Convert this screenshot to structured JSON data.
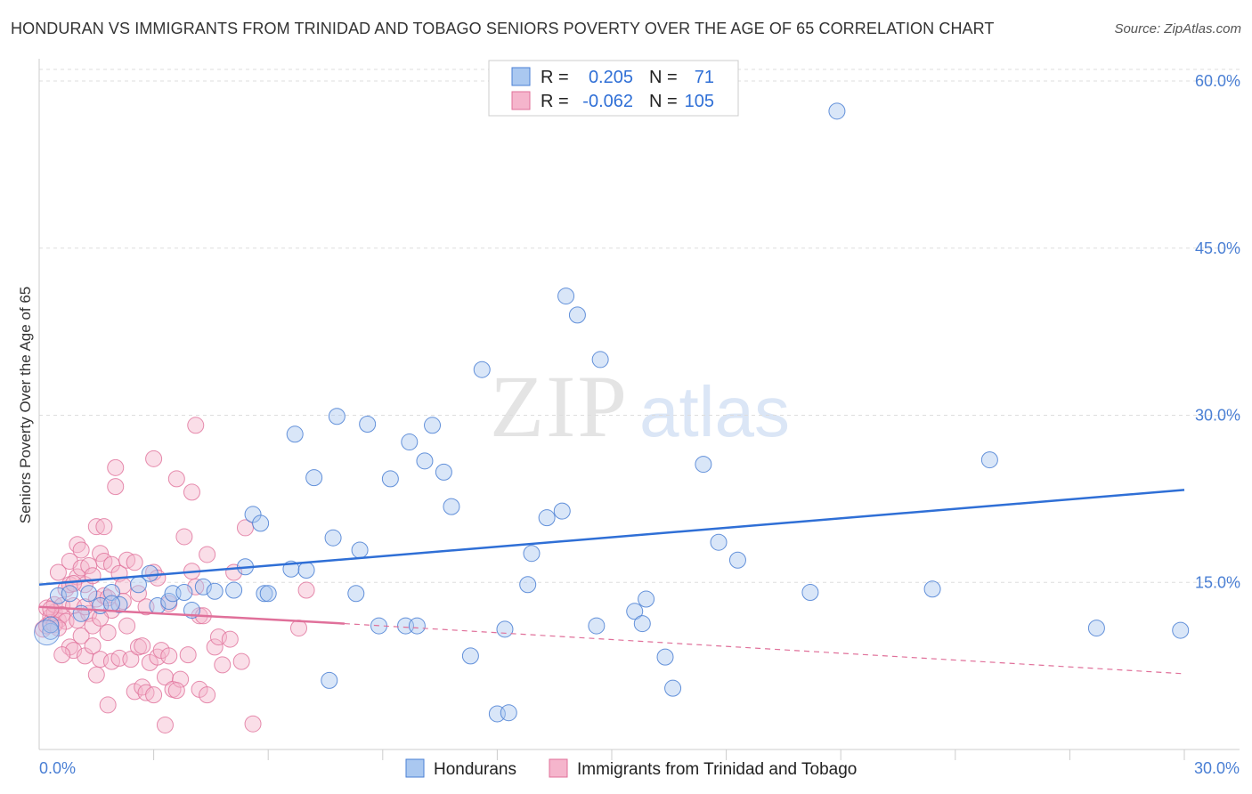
{
  "title": "HONDURAN VS IMMIGRANTS FROM TRINIDAD AND TOBAGO SENIORS POVERTY OVER THE AGE OF 65 CORRELATION CHART",
  "source": "Source: ZipAtlas.com",
  "watermark": {
    "zip": "ZIP",
    "atlas": "atlas"
  },
  "colors": {
    "blue": "#4a7fd4",
    "blue_fill": "#aac8f0",
    "pink": "#e0709a",
    "pink_fill": "#f5b5cc",
    "grid": "#dddddd"
  },
  "legend": {
    "r_label": "R =",
    "n_label": "N =",
    "rows": [
      {
        "r": "0.205",
        "n": "71"
      },
      {
        "r": "-0.062",
        "n": "105"
      }
    ]
  },
  "chart_data": {
    "type": "scatter",
    "title": "HONDURAN VS IMMIGRANTS FROM TRINIDAD AND TOBAGO SENIORS POVERTY OVER THE AGE OF 65 CORRELATION CHART",
    "ylabel": "Seniors Poverty Over the Age of 65",
    "xlim": [
      0,
      30
    ],
    "ylim": [
      0,
      62
    ],
    "x_tick_labels": [
      "0.0%",
      "30.0%"
    ],
    "y_ticks": [
      15,
      30,
      45,
      60
    ],
    "y_tick_labels": [
      "15.0%",
      "30.0%",
      "45.0%",
      "60.0%"
    ],
    "grid": true,
    "series": [
      {
        "name": "Hondurans",
        "trend": {
          "x": [
            0,
            30
          ],
          "y": [
            14.8,
            23.3
          ],
          "style": "solid"
        },
        "points": [
          [
            0.3,
            10.6
          ],
          [
            0.3,
            11.2
          ],
          [
            0.5,
            13.8
          ],
          [
            0.8,
            14.0
          ],
          [
            1.1,
            12.2
          ],
          [
            1.3,
            14.0
          ],
          [
            1.6,
            12.9
          ],
          [
            1.9,
            14.1
          ],
          [
            2.1,
            13.0
          ],
          [
            2.6,
            14.8
          ],
          [
            2.9,
            15.8
          ],
          [
            3.1,
            12.9
          ],
          [
            3.4,
            13.3
          ],
          [
            3.5,
            14.0
          ],
          [
            3.8,
            14.1
          ],
          [
            4.0,
            12.5
          ],
          [
            4.3,
            14.6
          ],
          [
            4.6,
            14.2
          ],
          [
            5.1,
            14.3
          ],
          [
            5.4,
            16.4
          ],
          [
            5.6,
            21.1
          ],
          [
            5.8,
            20.3
          ],
          [
            5.9,
            14.0
          ],
          [
            6.0,
            14.0
          ],
          [
            6.6,
            16.2
          ],
          [
            6.7,
            28.3
          ],
          [
            7.0,
            16.1
          ],
          [
            7.2,
            24.4
          ],
          [
            7.6,
            6.2
          ],
          [
            7.7,
            19.0
          ],
          [
            7.8,
            29.9
          ],
          [
            8.3,
            14.0
          ],
          [
            8.4,
            17.9
          ],
          [
            8.6,
            29.2
          ],
          [
            8.9,
            11.1
          ],
          [
            9.2,
            24.3
          ],
          [
            9.6,
            11.1
          ],
          [
            9.7,
            27.6
          ],
          [
            9.9,
            11.1
          ],
          [
            10.1,
            25.9
          ],
          [
            10.3,
            29.1
          ],
          [
            10.6,
            24.9
          ],
          [
            10.8,
            21.8
          ],
          [
            11.3,
            8.4
          ],
          [
            11.6,
            34.1
          ],
          [
            12.0,
            3.2
          ],
          [
            12.2,
            10.8
          ],
          [
            12.3,
            3.3
          ],
          [
            12.8,
            14.8
          ],
          [
            12.9,
            17.6
          ],
          [
            13.3,
            20.8
          ],
          [
            13.7,
            21.4
          ],
          [
            13.8,
            40.7
          ],
          [
            14.1,
            39.0
          ],
          [
            14.6,
            11.1
          ],
          [
            14.7,
            35.0
          ],
          [
            15.6,
            12.4
          ],
          [
            15.8,
            11.3
          ],
          [
            15.9,
            13.5
          ],
          [
            16.4,
            8.3
          ],
          [
            16.6,
            5.5
          ],
          [
            17.4,
            25.6
          ],
          [
            17.8,
            18.6
          ],
          [
            18.3,
            17.0
          ],
          [
            20.2,
            14.1
          ],
          [
            20.9,
            57.3
          ],
          [
            23.4,
            14.4
          ],
          [
            24.9,
            26.0
          ],
          [
            27.7,
            10.9
          ],
          [
            29.9,
            10.7
          ],
          [
            1.9,
            13.1
          ]
        ],
        "big_point": [
          0.2,
          10.5
        ]
      },
      {
        "name": "Immigrants from Trinidad and Tobago",
        "trend": {
          "x": [
            0,
            8
          ],
          "y": [
            12.8,
            11.3
          ],
          "style": "solid",
          "extension": {
            "x": [
              8,
              30
            ],
            "y": [
              11.3,
              6.8
            ],
            "style": "dashed"
          }
        },
        "points": [
          [
            0.1,
            10.8
          ],
          [
            0.2,
            12.7
          ],
          [
            0.2,
            11.1
          ],
          [
            0.3,
            11.9
          ],
          [
            0.3,
            11.4
          ],
          [
            0.4,
            12.3
          ],
          [
            0.4,
            13.0
          ],
          [
            0.5,
            11.6
          ],
          [
            0.5,
            15.9
          ],
          [
            0.6,
            12.9
          ],
          [
            0.6,
            12.1
          ],
          [
            0.7,
            14.4
          ],
          [
            0.7,
            11.5
          ],
          [
            0.8,
            14.8
          ],
          [
            0.8,
            16.9
          ],
          [
            0.8,
            9.2
          ],
          [
            0.9,
            8.9
          ],
          [
            0.9,
            12.9
          ],
          [
            1.0,
            18.4
          ],
          [
            1.0,
            15.5
          ],
          [
            1.0,
            11.6
          ],
          [
            1.1,
            16.3
          ],
          [
            1.1,
            17.9
          ],
          [
            1.1,
            10.2
          ],
          [
            1.2,
            14.8
          ],
          [
            1.2,
            8.4
          ],
          [
            1.3,
            12.2
          ],
          [
            1.3,
            16.5
          ],
          [
            1.4,
            11.1
          ],
          [
            1.4,
            9.3
          ],
          [
            1.4,
            15.6
          ],
          [
            1.5,
            20.0
          ],
          [
            1.5,
            6.7
          ],
          [
            1.5,
            13.5
          ],
          [
            1.6,
            17.6
          ],
          [
            1.6,
            8.1
          ],
          [
            1.7,
            13.8
          ],
          [
            1.7,
            20.0
          ],
          [
            1.7,
            16.9
          ],
          [
            1.8,
            10.5
          ],
          [
            1.8,
            4.0
          ],
          [
            1.9,
            7.9
          ],
          [
            1.9,
            12.5
          ],
          [
            1.9,
            16.6
          ],
          [
            2.0,
            25.3
          ],
          [
            2.0,
            23.6
          ],
          [
            2.1,
            8.2
          ],
          [
            2.1,
            15.8
          ],
          [
            2.2,
            14.7
          ],
          [
            2.2,
            13.3
          ],
          [
            2.3,
            17.0
          ],
          [
            2.3,
            11.1
          ],
          [
            2.4,
            8.1
          ],
          [
            2.5,
            5.2
          ],
          [
            2.6,
            14.0
          ],
          [
            2.6,
            9.2
          ],
          [
            2.7,
            5.6
          ],
          [
            2.8,
            12.8
          ],
          [
            2.8,
            5.1
          ],
          [
            2.9,
            7.8
          ],
          [
            3.0,
            26.1
          ],
          [
            3.0,
            15.9
          ],
          [
            3.0,
            4.9
          ],
          [
            3.1,
            15.4
          ],
          [
            3.1,
            8.3
          ],
          [
            3.2,
            8.9
          ],
          [
            3.3,
            6.5
          ],
          [
            3.4,
            8.4
          ],
          [
            3.4,
            13.1
          ],
          [
            3.5,
            5.4
          ],
          [
            3.6,
            24.3
          ],
          [
            3.7,
            6.3
          ],
          [
            3.8,
            19.1
          ],
          [
            3.9,
            8.5
          ],
          [
            4.0,
            23.1
          ],
          [
            4.0,
            16.0
          ],
          [
            4.1,
            29.1
          ],
          [
            4.1,
            14.6
          ],
          [
            4.2,
            5.4
          ],
          [
            4.2,
            12.0
          ],
          [
            4.4,
            17.5
          ],
          [
            4.4,
            4.9
          ],
          [
            4.6,
            9.2
          ],
          [
            4.7,
            10.1
          ],
          [
            4.8,
            7.6
          ],
          [
            5.0,
            9.9
          ],
          [
            5.1,
            15.9
          ],
          [
            5.3,
            7.9
          ],
          [
            5.4,
            19.9
          ],
          [
            5.6,
            2.3
          ],
          [
            6.8,
            10.9
          ],
          [
            7.0,
            14.3
          ],
          [
            3.3,
            2.2
          ],
          [
            0.6,
            8.5
          ],
          [
            0.9,
            14.9
          ],
          [
            1.2,
            12.8
          ],
          [
            2.5,
            16.8
          ],
          [
            0.4,
            11.2
          ],
          [
            1.6,
            11.8
          ],
          [
            2.7,
            9.3
          ],
          [
            3.6,
            5.3
          ],
          [
            4.3,
            12.0
          ],
          [
            0.3,
            12.6
          ],
          [
            0.5,
            10.9
          ],
          [
            1.8,
            13.6
          ]
        ]
      }
    ]
  },
  "bottom_legend": [
    {
      "label": "Hondurans"
    },
    {
      "label": "Immigrants from Trinidad and Tobago"
    }
  ]
}
